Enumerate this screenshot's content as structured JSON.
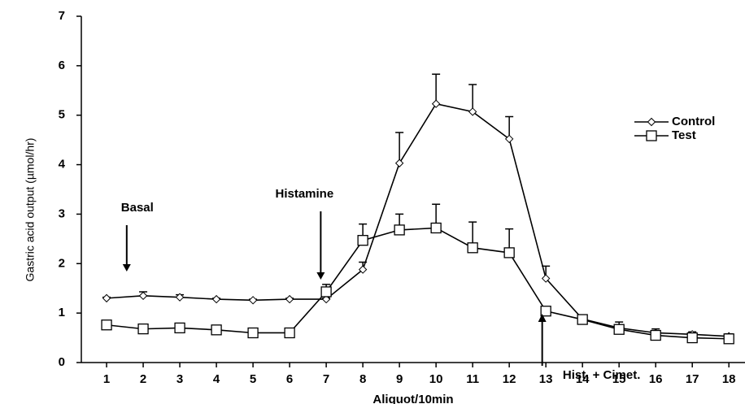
{
  "chart_data": {
    "type": "line",
    "y_label": "Gastric acid output (µmol/hr)",
    "x_label": "Aliquot/10min",
    "x": [
      1,
      2,
      3,
      4,
      5,
      6,
      7,
      8,
      9,
      10,
      11,
      12,
      13,
      14,
      15,
      16,
      17,
      18
    ],
    "xlim": [
      0.31,
      18.44
    ],
    "xticks": [
      1,
      2,
      3,
      4,
      5,
      6,
      7,
      8,
      9,
      10,
      11,
      12,
      13,
      14,
      15,
      16,
      17,
      18
    ],
    "ylim": [
      0,
      7
    ],
    "yticks": [
      0,
      1,
      2,
      3,
      4,
      5,
      6,
      7
    ],
    "grid": false,
    "legend": "upper right",
    "series": [
      {
        "name": "Control",
        "color": "#000000",
        "marker": "diamond",
        "values": [
          1.3,
          1.35,
          1.32,
          1.28,
          1.26,
          1.28,
          1.28,
          1.88,
          4.03,
          5.23,
          5.07,
          4.52,
          1.7,
          0.88,
          0.7,
          0.6,
          0.57,
          0.53
        ],
        "errors": [
          0.02,
          0.08,
          0.05,
          0.02,
          0.02,
          0.02,
          0.02,
          0.15,
          0.62,
          0.6,
          0.55,
          0.45,
          0.25,
          0.08,
          0.12,
          0.08,
          0.05,
          0.05
        ]
      },
      {
        "name": "Test",
        "color": "#000000",
        "marker": "square",
        "values": [
          0.76,
          0.68,
          0.7,
          0.66,
          0.6,
          0.6,
          1.43,
          2.47,
          2.68,
          2.72,
          2.32,
          2.22,
          1.04,
          0.87,
          0.67,
          0.55,
          0.5,
          0.48
        ],
        "errors": [
          0.02,
          0.02,
          0.02,
          0.02,
          0.02,
          0.02,
          0.15,
          0.33,
          0.32,
          0.48,
          0.52,
          0.48,
          0.02,
          0.05,
          0.05,
          0.05,
          0.05,
          0.05
        ]
      }
    ],
    "annotations": [
      {
        "text": "Basal",
        "x": 1.55,
        "direction": "down"
      },
      {
        "text": "Histamine",
        "x": 6.85,
        "direction": "down"
      },
      {
        "text": "Hist. + Cimet.",
        "x": 12.9,
        "direction": "up"
      }
    ]
  }
}
